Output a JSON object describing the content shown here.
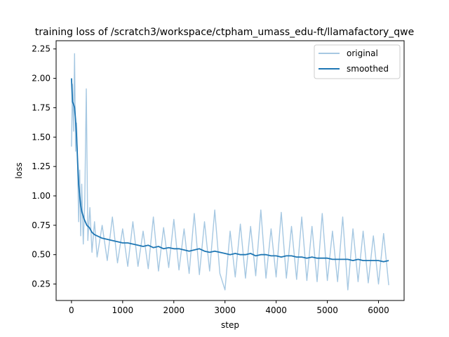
{
  "chart_data": {
    "type": "line",
    "title": "training loss of /scratch3/workspace/ctpham_umass_edu-ft/llamafactory_qwe",
    "xlabel": "step",
    "ylabel": "loss",
    "xlim": [
      -300,
      6500
    ],
    "ylim": [
      0.11,
      2.32
    ],
    "xticks": [
      0,
      1000,
      2000,
      3000,
      4000,
      5000,
      6000
    ],
    "xtick_labels": [
      "0",
      "1000",
      "2000",
      "3000",
      "4000",
      "5000",
      "6000"
    ],
    "yticks": [
      0.25,
      0.5,
      0.75,
      1.0,
      1.25,
      1.5,
      1.75,
      2.0,
      2.25
    ],
    "ytick_labels": [
      "0.25",
      "0.50",
      "0.75",
      "1.00",
      "1.25",
      "1.50",
      "1.75",
      "2.00",
      "2.25"
    ],
    "grid": false,
    "legend_position": "top-right",
    "series": [
      {
        "name": "original",
        "color": "#a6c8e2",
        "x": [
          0,
          20,
          40,
          60,
          80,
          100,
          120,
          140,
          160,
          180,
          200,
          230,
          260,
          290,
          320,
          360,
          400,
          450,
          500,
          600,
          700,
          800,
          900,
          1000,
          1100,
          1200,
          1300,
          1400,
          1500,
          1600,
          1700,
          1800,
          1900,
          2000,
          2100,
          2200,
          2300,
          2400,
          2500,
          2600,
          2700,
          2800,
          2900,
          3000,
          3100,
          3200,
          3300,
          3400,
          3500,
          3600,
          3700,
          3800,
          3900,
          4000,
          4100,
          4200,
          4300,
          4400,
          4500,
          4600,
          4700,
          4800,
          4900,
          5000,
          5100,
          5200,
          5300,
          5400,
          5500,
          5600,
          5700,
          5800,
          5900,
          6000,
          6100,
          6200
        ],
        "y": [
          1.42,
          1.95,
          1.55,
          2.21,
          1.38,
          1.62,
          1.25,
          0.78,
          1.22,
          0.66,
          1.1,
          0.59,
          0.95,
          1.91,
          0.62,
          0.9,
          0.52,
          0.78,
          0.48,
          0.75,
          0.45,
          0.82,
          0.43,
          0.72,
          0.4,
          0.78,
          0.4,
          0.7,
          0.38,
          0.82,
          0.36,
          0.73,
          0.39,
          0.8,
          0.37,
          0.72,
          0.34,
          0.85,
          0.33,
          0.78,
          0.36,
          0.88,
          0.34,
          0.2,
          0.7,
          0.31,
          0.76,
          0.3,
          0.74,
          0.32,
          0.88,
          0.3,
          0.72,
          0.31,
          0.86,
          0.3,
          0.74,
          0.29,
          0.82,
          0.28,
          0.74,
          0.27,
          0.85,
          0.28,
          0.7,
          0.27,
          0.82,
          0.2,
          0.72,
          0.27,
          0.7,
          0.26,
          0.66,
          0.25,
          0.68,
          0.24
        ]
      },
      {
        "name": "smoothed",
        "color": "#1f77b4",
        "x": [
          0,
          20,
          40,
          60,
          80,
          100,
          120,
          140,
          160,
          180,
          200,
          250,
          300,
          350,
          400,
          450,
          500,
          600,
          700,
          800,
          900,
          1000,
          1100,
          1200,
          1300,
          1400,
          1500,
          1600,
          1700,
          1800,
          1900,
          2000,
          2100,
          2200,
          2300,
          2400,
          2500,
          2600,
          2700,
          2800,
          2900,
          3000,
          3100,
          3200,
          3300,
          3400,
          3500,
          3600,
          3700,
          3800,
          3900,
          4000,
          4100,
          4200,
          4300,
          4400,
          4500,
          4600,
          4700,
          4800,
          4900,
          5000,
          5100,
          5200,
          5300,
          5400,
          5500,
          5600,
          5700,
          5800,
          5900,
          6000,
          6100,
          6200
        ],
        "y": [
          2.0,
          1.8,
          1.78,
          1.75,
          1.65,
          1.5,
          1.3,
          1.1,
          1.0,
          0.92,
          0.87,
          0.8,
          0.75,
          0.73,
          0.69,
          0.67,
          0.66,
          0.64,
          0.63,
          0.62,
          0.61,
          0.6,
          0.6,
          0.59,
          0.58,
          0.57,
          0.58,
          0.56,
          0.57,
          0.55,
          0.56,
          0.55,
          0.55,
          0.54,
          0.53,
          0.54,
          0.55,
          0.53,
          0.52,
          0.53,
          0.52,
          0.51,
          0.5,
          0.51,
          0.5,
          0.5,
          0.51,
          0.49,
          0.5,
          0.5,
          0.49,
          0.49,
          0.48,
          0.49,
          0.49,
          0.48,
          0.48,
          0.47,
          0.48,
          0.47,
          0.47,
          0.47,
          0.46,
          0.46,
          0.46,
          0.46,
          0.45,
          0.46,
          0.45,
          0.45,
          0.45,
          0.45,
          0.44,
          0.45
        ]
      }
    ]
  }
}
